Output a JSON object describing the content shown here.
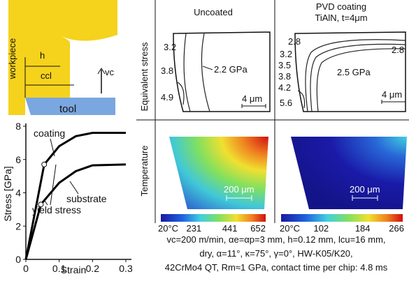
{
  "diagram": {
    "workpiece": "workpiece",
    "h": "h",
    "ccl": "ccl",
    "vc": "vc",
    "tool": "tool"
  },
  "chart_data": {
    "type": "line",
    "ylabel": "Stress [GPa]",
    "xlabel": "Strain",
    "series": [
      {
        "name": "coating",
        "color": "#000000",
        "x": [
          0,
          0.055,
          0.1,
          0.15,
          0.2,
          0.3
        ],
        "values": [
          0,
          5.7,
          6.8,
          7.4,
          7.6,
          7.6
        ]
      },
      {
        "name": "substrate",
        "color": "#000000",
        "x": [
          0,
          0.045,
          0.1,
          0.15,
          0.2,
          0.3
        ],
        "values": [
          0,
          3.3,
          4.6,
          5.3,
          5.65,
          5.7
        ]
      }
    ],
    "annotation": "yield stress",
    "xlim": [
      0,
      0.3
    ],
    "xticks": [
      0,
      0.1,
      0.2,
      0.3
    ],
    "ylim": [
      0,
      8
    ],
    "yticks": [
      0,
      2,
      4,
      6,
      8
    ]
  },
  "columns": [
    {
      "title": "Uncoated"
    },
    {
      "title": "PVD coating",
      "subtitle": "TiAlN, t=4μm"
    }
  ],
  "rows": [
    "Equivalent stress",
    "Temperature"
  ],
  "stress_panels": [
    {
      "labels": [
        "3.2",
        "3.8",
        "4.9",
        "2.2 GPa"
      ],
      "scale": "4 μm"
    },
    {
      "labels": [
        "2.8",
        "2.8",
        "3.2",
        "3.5",
        "3.8",
        "4.2",
        "5.6",
        "2.5 GPa"
      ],
      "scale": "4 μm"
    }
  ],
  "temperature_panels": [
    {
      "scale": "200 μm",
      "colorbar": [
        "20°C",
        "231",
        "441",
        "652"
      ]
    },
    {
      "scale": "200 μm",
      "colorbar": [
        "20°C",
        "102",
        "184",
        "266"
      ]
    }
  ],
  "caption": [
    "vc=200 m/min, αe=αp=3 mm, h=0.12 mm, lcu=16 mm,",
    "dry, α=11°, κ=75°, γ=0°, HW-K05/K20,",
    "42CrMo4 QT, Rm≈1 GPa, contact time per chip: 4.8 ms"
  ]
}
